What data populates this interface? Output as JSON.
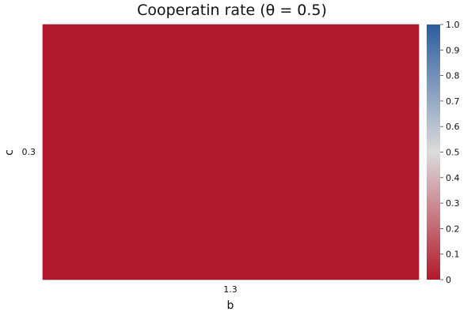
{
  "chart_data": {
    "type": "heatmap",
    "title": "Cooperatin rate (θ = 0.5)",
    "xlabel": "b",
    "ylabel": "c",
    "x": [
      1.3
    ],
    "y": [
      0.3
    ],
    "values": [
      [
        0.0
      ]
    ],
    "colorbar": {
      "range": [
        0.0,
        1.0
      ],
      "ticks": [
        "0",
        "0.1",
        "0.2",
        "0.3",
        "0.4",
        "0.5",
        "0.6",
        "0.7",
        "0.8",
        "0.9",
        "1.0"
      ],
      "colormap": [
        "#b2182b",
        "#d6d6d6",
        "#2c5d9f"
      ]
    },
    "grid": false
  }
}
